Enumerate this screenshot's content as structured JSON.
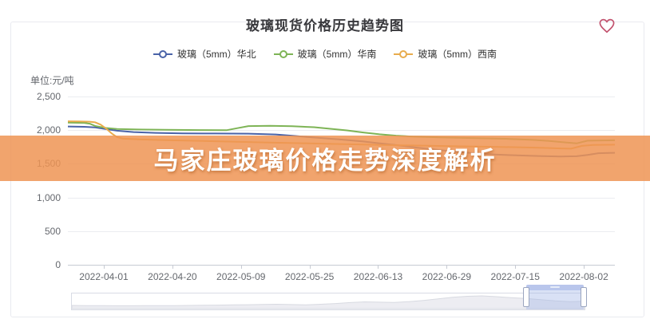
{
  "card": {
    "title": "玻璃现货价格历史趋势图"
  },
  "icons": {
    "favorite": "heart-outline-icon",
    "favorite_color": "#c2526e"
  },
  "banner": {
    "text": "马家庄玻璃价格走势深度解析",
    "bg_color": "rgba(238,148,84,0.85)",
    "text_color": "#ffffff"
  },
  "chart_data": {
    "type": "line",
    "title": "玻璃现货价格历史趋势图",
    "ylabel": "单位:元/吨",
    "ylim": [
      0,
      2500
    ],
    "grid": true,
    "legend_position": "top",
    "y_ticks": [
      "0",
      "500",
      "1,000",
      "1,500",
      "2,000",
      "2,500"
    ],
    "x_ticks": [
      "2022-04-01",
      "2022-04-20",
      "2022-05-09",
      "2022-05-25",
      "2022-06-13",
      "2022-06-29",
      "2022-07-15",
      "2022-08-02"
    ],
    "series": [
      {
        "name": "玻璃（5mm）华北",
        "color": "#4a63a8",
        "points": [
          [
            0,
            2055
          ],
          [
            0.03,
            2050
          ],
          [
            0.05,
            2040
          ],
          [
            0.07,
            2015
          ],
          [
            0.09,
            1992
          ],
          [
            0.12,
            1972
          ],
          [
            0.16,
            1960
          ],
          [
            0.21,
            1953
          ],
          [
            0.27,
            1950
          ],
          [
            0.33,
            1948
          ],
          [
            0.38,
            1936
          ],
          [
            0.42,
            1910
          ],
          [
            0.46,
            1885
          ],
          [
            0.5,
            1860
          ],
          [
            0.54,
            1832
          ],
          [
            0.57,
            1805
          ],
          [
            0.6,
            1778
          ],
          [
            0.63,
            1748
          ],
          [
            0.66,
            1720
          ],
          [
            0.69,
            1695
          ],
          [
            0.72,
            1672
          ],
          [
            0.75,
            1653
          ],
          [
            0.78,
            1639
          ],
          [
            0.82,
            1626
          ],
          [
            0.86,
            1616
          ],
          [
            0.9,
            1609
          ],
          [
            0.93,
            1613
          ],
          [
            0.95,
            1633
          ],
          [
            0.97,
            1657
          ],
          [
            1,
            1664
          ]
        ]
      },
      {
        "name": "玻璃（5mm）华南",
        "color": "#7eb456",
        "points": [
          [
            0,
            2112
          ],
          [
            0.03,
            2108
          ],
          [
            0.04,
            2096
          ],
          [
            0.05,
            2062
          ],
          [
            0.07,
            2032
          ],
          [
            0.09,
            2018
          ],
          [
            0.13,
            2010
          ],
          [
            0.18,
            2005
          ],
          [
            0.24,
            2001
          ],
          [
            0.29,
            1999
          ],
          [
            0.31,
            2030
          ],
          [
            0.33,
            2060
          ],
          [
            0.37,
            2064
          ],
          [
            0.41,
            2058
          ],
          [
            0.45,
            2044
          ],
          [
            0.48,
            2020
          ],
          [
            0.51,
            1996
          ],
          [
            0.54,
            1966
          ],
          [
            0.57,
            1938
          ],
          [
            0.6,
            1918
          ],
          [
            0.63,
            1905
          ],
          [
            0.68,
            1893
          ],
          [
            0.74,
            1883
          ],
          [
            0.8,
            1872
          ],
          [
            0.85,
            1856
          ],
          [
            0.88,
            1840
          ],
          [
            0.91,
            1818
          ],
          [
            0.93,
            1803
          ],
          [
            0.95,
            1844
          ],
          [
            1,
            1849
          ]
        ]
      },
      {
        "name": "玻璃（5mm）西南",
        "color": "#e8ac4d",
        "points": [
          [
            0,
            2132
          ],
          [
            0.02,
            2130
          ],
          [
            0.04,
            2126
          ],
          [
            0.05,
            2116
          ],
          [
            0.06,
            2082
          ],
          [
            0.07,
            2022
          ],
          [
            0.08,
            1952
          ],
          [
            0.09,
            1897
          ],
          [
            0.1,
            1876
          ],
          [
            0.13,
            1863
          ],
          [
            0.18,
            1852
          ],
          [
            0.24,
            1841
          ],
          [
            0.3,
            1829
          ],
          [
            0.36,
            1818
          ],
          [
            0.42,
            1807
          ],
          [
            0.48,
            1796
          ],
          [
            0.54,
            1786
          ],
          [
            0.6,
            1776
          ],
          [
            0.66,
            1768
          ],
          [
            0.72,
            1760
          ],
          [
            0.78,
            1752
          ],
          [
            0.83,
            1744
          ],
          [
            0.87,
            1737
          ],
          [
            0.9,
            1729
          ],
          [
            0.92,
            1725
          ],
          [
            0.94,
            1766
          ],
          [
            0.96,
            1781
          ],
          [
            1,
            1784
          ]
        ]
      }
    ],
    "datazoom": {
      "overview": [
        0.2,
        0.19,
        0.18,
        0.17,
        0.17,
        0.18,
        0.18,
        0.19,
        0.2,
        0.21,
        0.23,
        0.25,
        0.26,
        0.28,
        0.3,
        0.27,
        0.25,
        0.3,
        0.36,
        0.44,
        0.5,
        0.47,
        0.45,
        0.52,
        0.62,
        0.75,
        0.88,
        0.97,
        1.0,
        0.93,
        0.85,
        0.78,
        0.68,
        0.58,
        0.52,
        0.55
      ],
      "window": {
        "start_fraction": 0.885,
        "end_fraction": 0.997
      }
    }
  }
}
